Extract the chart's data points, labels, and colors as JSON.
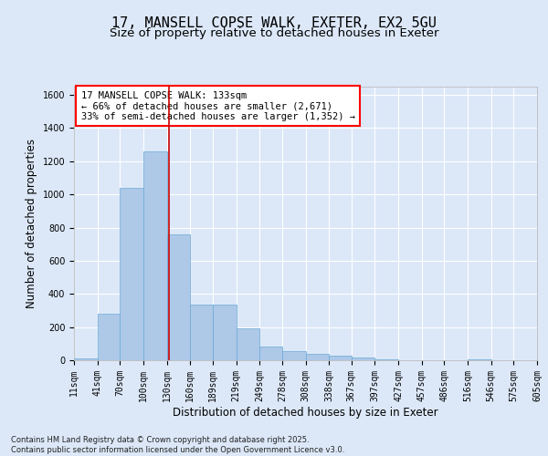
{
  "title_line1": "17, MANSELL COPSE WALK, EXETER, EX2 5GU",
  "title_line2": "Size of property relative to detached houses in Exeter",
  "xlabel": "Distribution of detached houses by size in Exeter",
  "ylabel": "Number of detached properties",
  "bar_color": "#aec8e8",
  "bar_edge_color": "#6aaad4",
  "background_color": "#dce8f8",
  "vline_x": 133,
  "vline_color": "#cc0000",
  "bin_edges": [
    11,
    41,
    70,
    100,
    130,
    160,
    189,
    219,
    249,
    278,
    308,
    338,
    367,
    397,
    427,
    457,
    486,
    516,
    546,
    575,
    605
  ],
  "bar_heights": [
    10,
    280,
    1040,
    1260,
    760,
    335,
    335,
    190,
    80,
    55,
    38,
    25,
    18,
    5,
    0,
    0,
    0,
    8,
    0,
    0
  ],
  "tick_labels": [
    "11sqm",
    "41sqm",
    "70sqm",
    "100sqm",
    "130sqm",
    "160sqm",
    "189sqm",
    "219sqm",
    "249sqm",
    "278sqm",
    "308sqm",
    "338sqm",
    "367sqm",
    "397sqm",
    "427sqm",
    "457sqm",
    "486sqm",
    "516sqm",
    "546sqm",
    "575sqm",
    "605sqm"
  ],
  "ylim": [
    0,
    1650
  ],
  "yticks": [
    0,
    200,
    400,
    600,
    800,
    1000,
    1200,
    1400,
    1600
  ],
  "annotation_text": "17 MANSELL COPSE WALK: 133sqm\n← 66% of detached houses are smaller (2,671)\n33% of semi-detached houses are larger (1,352) →",
  "footer_text": "Contains HM Land Registry data © Crown copyright and database right 2025.\nContains public sector information licensed under the Open Government Licence v3.0.",
  "title_fontsize": 11,
  "subtitle_fontsize": 9.5,
  "label_fontsize": 8.5,
  "tick_fontsize": 7,
  "annotation_fontsize": 7.5,
  "footer_fontsize": 6
}
